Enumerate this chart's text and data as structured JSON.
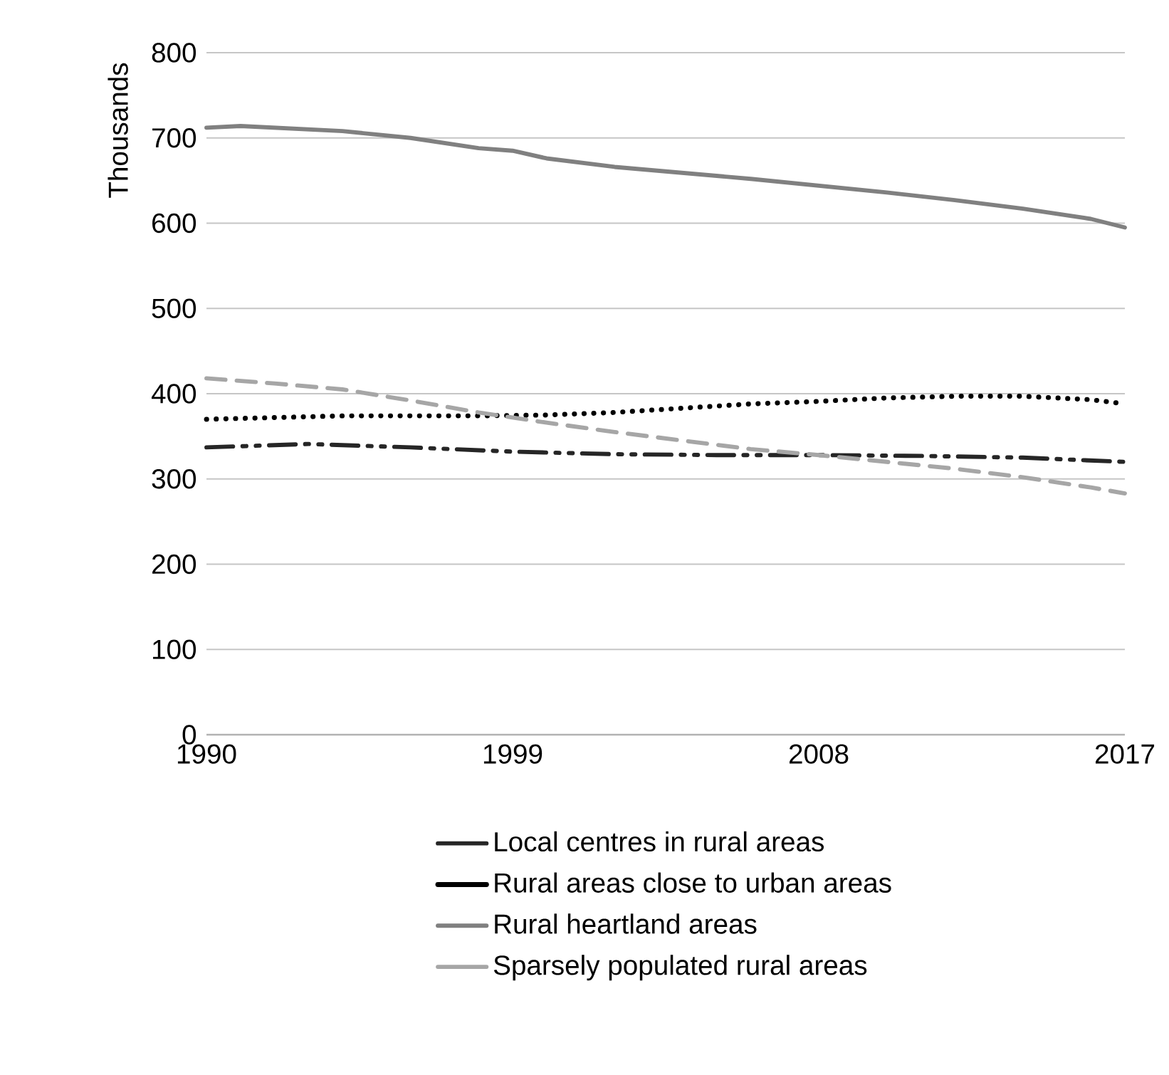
{
  "chart_data": {
    "type": "line",
    "ylabel": "Thousands",
    "xlim": [
      1990,
      2017
    ],
    "xticks": [
      1990,
      1999,
      2008,
      2017
    ],
    "ylim": [
      0,
      800
    ],
    "yticks": [
      0,
      100,
      200,
      300,
      400,
      500,
      600,
      700,
      800
    ],
    "grid": "y",
    "legend": "bottom",
    "marker": "none",
    "series": [
      {
        "name": "Local centres in rural areas",
        "color": "#262626",
        "line_style": "dashdotdot",
        "x": [
          1990,
          1993,
          1996,
          1999,
          2002,
          2005,
          2008,
          2011,
          2014,
          2017
        ],
        "values": [
          337,
          341,
          337,
          332,
          329,
          328,
          328,
          327,
          325,
          320
        ]
      },
      {
        "name": "Rural areas close to urban areas",
        "color": "#000000",
        "line_style": "dotted",
        "x": [
          1990,
          1994,
          1998,
          2000,
          2002,
          2004,
          2006,
          2008,
          2010,
          2012,
          2014,
          2016,
          2017
        ],
        "values": [
          370,
          374,
          374,
          375,
          378,
          383,
          388,
          391,
          395,
          397,
          397,
          393,
          388
        ]
      },
      {
        "name": "Rural heartland areas",
        "color": "#808080",
        "line_style": "solid",
        "x": [
          1990,
          1991,
          1994,
          1996,
          1998,
          1999,
          2000,
          2002,
          2004,
          2006,
          2008,
          2010,
          2012,
          2014,
          2016,
          2017
        ],
        "values": [
          712,
          714,
          708,
          700,
          688,
          685,
          676,
          666,
          659,
          652,
          644,
          636,
          627,
          617,
          605,
          595
        ]
      },
      {
        "name": "Sparsely populated rural areas",
        "color": "#a6a6a6",
        "line_style": "dashed",
        "x": [
          1990,
          1992,
          1994,
          1996,
          1998,
          2000,
          2002,
          2004,
          2006,
          2008,
          2010,
          2012,
          2014,
          2016,
          2017
        ],
        "values": [
          418,
          412,
          405,
          392,
          378,
          366,
          355,
          345,
          335,
          328,
          320,
          312,
          302,
          290,
          283
        ]
      }
    ]
  }
}
